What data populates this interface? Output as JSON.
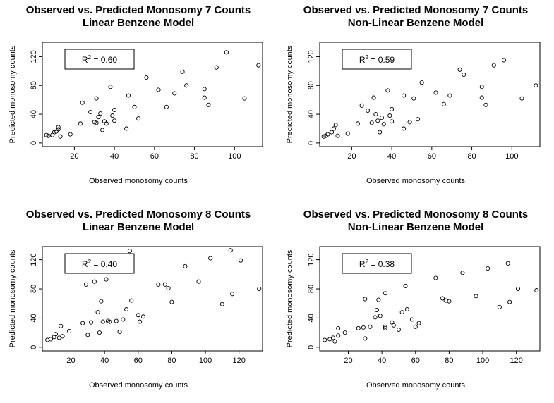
{
  "chart_data": [
    {
      "type": "scatter",
      "title": "Observed vs. Predicted Monosomy 7 Counts",
      "subtitle": "Linear Benzene Model",
      "xlabel": "Observed monosomy counts",
      "ylabel": "Predicted monosomy counts",
      "xlim": [
        4,
        114
      ],
      "ylim": [
        -5,
        140
      ],
      "xticks": [
        20,
        40,
        60,
        80,
        100
      ],
      "yticks": [
        0,
        40,
        80,
        120
      ],
      "r2_label": "0.60",
      "points": [
        [
          6,
          11
        ],
        [
          7,
          10
        ],
        [
          9,
          11
        ],
        [
          10,
          15
        ],
        [
          11,
          16
        ],
        [
          12,
          19
        ],
        [
          12,
          22
        ],
        [
          13,
          9
        ],
        [
          18,
          12
        ],
        [
          23,
          27
        ],
        [
          24,
          56
        ],
        [
          28,
          43
        ],
        [
          30,
          29
        ],
        [
          31,
          28
        ],
        [
          31,
          62
        ],
        [
          32,
          36
        ],
        [
          33,
          41
        ],
        [
          34,
          18
        ],
        [
          35,
          30
        ],
        [
          36,
          27
        ],
        [
          38,
          78
        ],
        [
          39,
          38
        ],
        [
          40,
          31
        ],
        [
          40,
          46
        ],
        [
          46,
          20
        ],
        [
          47,
          66
        ],
        [
          50,
          50
        ],
        [
          52,
          34
        ],
        [
          56,
          91
        ],
        [
          62,
          74
        ],
        [
          66,
          50
        ],
        [
          70,
          69
        ],
        [
          74,
          99
        ],
        [
          76,
          80
        ],
        [
          85,
          75
        ],
        [
          85,
          63
        ],
        [
          87,
          53
        ],
        [
          91,
          105
        ],
        [
          96,
          126
        ],
        [
          105,
          62
        ],
        [
          112,
          108
        ]
      ]
    },
    {
      "type": "scatter",
      "title": "Observed vs. Predicted Monosomy 7 Counts",
      "subtitle": "Non-Linear Benzene Model",
      "xlabel": "Observed monosomy counts",
      "ylabel": "Predicted monosomy counts",
      "xlim": [
        4,
        114
      ],
      "ylim": [
        -5,
        140
      ],
      "xticks": [
        20,
        40,
        60,
        80,
        100
      ],
      "yticks": [
        0,
        40,
        80,
        120
      ],
      "r2_label": "0.59",
      "points": [
        [
          6,
          9
        ],
        [
          7,
          10
        ],
        [
          8,
          12
        ],
        [
          10,
          15
        ],
        [
          11,
          20
        ],
        [
          12,
          25
        ],
        [
          13,
          10
        ],
        [
          18,
          13
        ],
        [
          23,
          27
        ],
        [
          25,
          52
        ],
        [
          28,
          45
        ],
        [
          30,
          28
        ],
        [
          31,
          63
        ],
        [
          32,
          40
        ],
        [
          33,
          31
        ],
        [
          34,
          15
        ],
        [
          35,
          35
        ],
        [
          36,
          26
        ],
        [
          38,
          73
        ],
        [
          39,
          38
        ],
        [
          40,
          30
        ],
        [
          40,
          47
        ],
        [
          46,
          20
        ],
        [
          46,
          66
        ],
        [
          49,
          29
        ],
        [
          51,
          62
        ],
        [
          53,
          33
        ],
        [
          55,
          84
        ],
        [
          62,
          70
        ],
        [
          66,
          54
        ],
        [
          69,
          66
        ],
        [
          74,
          102
        ],
        [
          76,
          95
        ],
        [
          85,
          78
        ],
        [
          85,
          63
        ],
        [
          87,
          53
        ],
        [
          91,
          108
        ],
        [
          96,
          115
        ],
        [
          105,
          62
        ],
        [
          112,
          80
        ]
      ]
    },
    {
      "type": "scatter",
      "title": "Observed vs. Predicted Monosomy 8 Counts",
      "subtitle": "Linear Benzene Model",
      "xlabel": "Observed monosomy counts",
      "ylabel": "Predicted monosomy counts",
      "xlim": [
        3,
        134
      ],
      "ylim": [
        -5,
        138
      ],
      "xticks": [
        20,
        40,
        60,
        80,
        100,
        120
      ],
      "yticks": [
        0,
        40,
        80,
        120
      ],
      "r2_label": "0.40",
      "points": [
        [
          6,
          10
        ],
        [
          8,
          11
        ],
        [
          10,
          14
        ],
        [
          11,
          18
        ],
        [
          13,
          13
        ],
        [
          14,
          29
        ],
        [
          15,
          15
        ],
        [
          19,
          22
        ],
        [
          27,
          33
        ],
        [
          29,
          86
        ],
        [
          30,
          17
        ],
        [
          32,
          34
        ],
        [
          34,
          90
        ],
        [
          36,
          48
        ],
        [
          37,
          20
        ],
        [
          38,
          63
        ],
        [
          39,
          35
        ],
        [
          41,
          93
        ],
        [
          42,
          36
        ],
        [
          43,
          35
        ],
        [
          47,
          36
        ],
        [
          49,
          21
        ],
        [
          51,
          38
        ],
        [
          53,
          52
        ],
        [
          55,
          132
        ],
        [
          56,
          64
        ],
        [
          60,
          44
        ],
        [
          61,
          35
        ],
        [
          63,
          42
        ],
        [
          72,
          86
        ],
        [
          76,
          86
        ],
        [
          78,
          81
        ],
        [
          80,
          62
        ],
        [
          88,
          111
        ],
        [
          96,
          90
        ],
        [
          103,
          122
        ],
        [
          110,
          59
        ],
        [
          115,
          133
        ],
        [
          116,
          73
        ],
        [
          121,
          119
        ],
        [
          132,
          80
        ]
      ]
    },
    {
      "type": "scatter",
      "title": "Observed vs. Predicted Monosomy 8 Counts",
      "subtitle": "Non-Linear Benzene Model",
      "xlabel": "Observed monosomy counts",
      "ylabel": "Predicted monosomy counts",
      "xlim": [
        3,
        134
      ],
      "ylim": [
        -5,
        138
      ],
      "xticks": [
        20,
        40,
        60,
        80,
        100,
        120
      ],
      "yticks": [
        0,
        40,
        80,
        120
      ],
      "r2_label": "0.38",
      "points": [
        [
          6,
          10
        ],
        [
          9,
          11
        ],
        [
          11,
          13
        ],
        [
          12,
          8
        ],
        [
          14,
          16
        ],
        [
          14,
          26
        ],
        [
          18,
          20
        ],
        [
          26,
          26
        ],
        [
          29,
          27
        ],
        [
          30,
          12
        ],
        [
          30,
          66
        ],
        [
          33,
          28
        ],
        [
          36,
          41
        ],
        [
          37,
          51
        ],
        [
          38,
          65
        ],
        [
          39,
          43
        ],
        [
          42,
          26
        ],
        [
          42,
          28
        ],
        [
          42,
          74
        ],
        [
          46,
          34
        ],
        [
          47,
          30
        ],
        [
          50,
          24
        ],
        [
          52,
          48
        ],
        [
          54,
          84
        ],
        [
          55,
          52
        ],
        [
          58,
          38
        ],
        [
          60,
          28
        ],
        [
          62,
          33
        ],
        [
          72,
          95
        ],
        [
          76,
          67
        ],
        [
          78,
          64
        ],
        [
          80,
          63
        ],
        [
          88,
          102
        ],
        [
          96,
          70
        ],
        [
          103,
          108
        ],
        [
          110,
          55
        ],
        [
          115,
          115
        ],
        [
          116,
          62
        ],
        [
          121,
          80
        ],
        [
          132,
          78
        ]
      ]
    }
  ]
}
